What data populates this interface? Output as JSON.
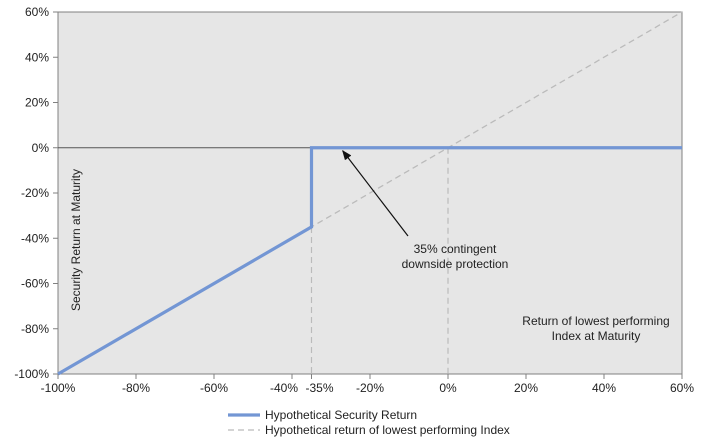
{
  "chart_data": {
    "type": "line",
    "xlabel": "Return of lowest performing Index at Maturity",
    "ylabel": "Security Return at Maturity",
    "xlim": [
      -100,
      60
    ],
    "ylim": [
      -100,
      60
    ],
    "x_ticks": [
      -100,
      -80,
      -60,
      -40,
      -35,
      -20,
      0,
      20,
      40,
      60
    ],
    "x_tick_labels": [
      "-100%",
      "-80%",
      "-60%",
      "-40%",
      "-35%",
      "-20%",
      "0%",
      "20%",
      "40%",
      "60%"
    ],
    "y_ticks": [
      60,
      40,
      20,
      0,
      -20,
      -40,
      -60,
      -80,
      -100
    ],
    "y_tick_labels": [
      "60%",
      "40%",
      "20%",
      "0%",
      "-20%",
      "-40%",
      "-60%",
      "-80%",
      "-100%"
    ],
    "grid": false,
    "background": "#e6e6e6",
    "legend_position": "bottom-center",
    "series": [
      {
        "name": "Hypothetical Security Return",
        "color": "#7396d4",
        "style": "solid",
        "x": [
          -100,
          -35,
          -35,
          60
        ],
        "y": [
          -100,
          -35,
          0,
          0
        ]
      },
      {
        "name": "Hypothetical return of lowest performing Index",
        "color": "#bbbbbb",
        "style": "dashed",
        "x": [
          -100,
          60
        ],
        "y": [
          -100,
          60
        ]
      }
    ],
    "annotations": [
      {
        "text_lines": [
          "35% contingent",
          "downside protection"
        ],
        "arrow_to": [
          -27,
          0
        ]
      }
    ]
  }
}
